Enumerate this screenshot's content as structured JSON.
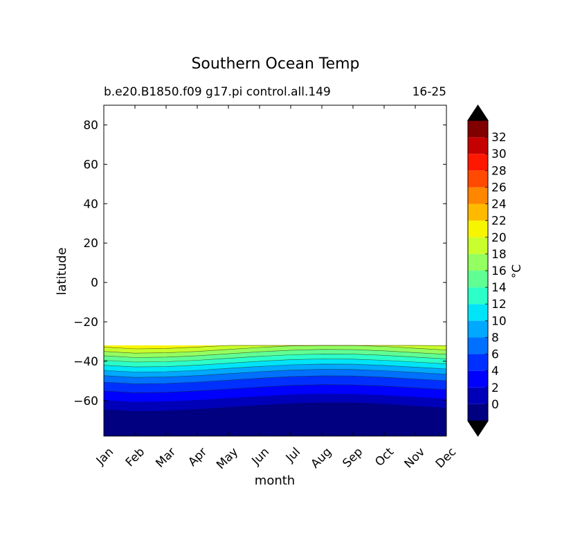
{
  "chart_data": {
    "type": "heatmap",
    "subtype": "filled-contour",
    "title": "Southern Ocean Temp",
    "subtitle_left": "b.e20.B1850.f09 g17.pi control.all.149",
    "subtitle_right": "16-25",
    "xlabel": "month",
    "ylabel": "latitude",
    "x_categories": [
      "Jan",
      "Feb",
      "Mar",
      "Apr",
      "May",
      "Jun",
      "Jul",
      "Aug",
      "Sep",
      "Oct",
      "Nov",
      "Dec"
    ],
    "ylim": [
      -78,
      90
    ],
    "y_ticks": [
      80,
      60,
      40,
      20,
      0,
      -20,
      -40,
      -60
    ],
    "y_tick_labels": [
      "80",
      "60",
      "40",
      "20",
      "0",
      "−20",
      "−40",
      "−60"
    ],
    "data_lat_range": [
      -78,
      -32
    ],
    "colorbar": {
      "label": "°C",
      "levels": [
        -2,
        0,
        2,
        4,
        6,
        8,
        10,
        12,
        14,
        16,
        18,
        20,
        22,
        24,
        26,
        28,
        30,
        32,
        34
      ],
      "tick_labels": [
        "0",
        "2",
        "4",
        "6",
        "8",
        "10",
        "12",
        "14",
        "16",
        "18",
        "20",
        "22",
        "24",
        "26",
        "28",
        "30",
        "32"
      ],
      "colors": [
        "#000080",
        "#0000b8",
        "#0000ff",
        "#0030ff",
        "#0070ff",
        "#00a8ff",
        "#00e4f8",
        "#2cffc8",
        "#60ff94",
        "#94ff60",
        "#c8ff2c",
        "#f8f500",
        "#ffba00",
        "#ff8600",
        "#ff4a00",
        "#ff1800",
        "#c40000",
        "#800000"
      ],
      "extend_colors": [
        "#000000",
        "#000000"
      ]
    },
    "isotherms": [
      {
        "level": 0,
        "lats": [
          -64.4,
          -65.3,
          -65.0,
          -64.2,
          -63.2,
          -62.2,
          -61.3,
          -60.8,
          -60.9,
          -61.6,
          -62.6,
          -63.6
        ]
      },
      {
        "level": 2,
        "lats": [
          -59.6,
          -60.5,
          -60.3,
          -59.6,
          -58.6,
          -57.6,
          -56.8,
          -56.4,
          -56.5,
          -57.1,
          -58.0,
          -58.9
        ]
      },
      {
        "level": 4,
        "lats": [
          -55.1,
          -56.0,
          -55.8,
          -55.1,
          -54.1,
          -53.1,
          -52.3,
          -51.9,
          -52.0,
          -52.6,
          -53.5,
          -54.4
        ]
      },
      {
        "level": 6,
        "lats": [
          -50.6,
          -51.5,
          -51.3,
          -50.6,
          -49.6,
          -48.6,
          -47.8,
          -47.4,
          -47.5,
          -48.1,
          -49.0,
          -49.9
        ]
      },
      {
        "level": 8,
        "lats": [
          -47.3,
          -48.2,
          -48.0,
          -47.3,
          -46.3,
          -45.3,
          -44.5,
          -44.1,
          -44.2,
          -44.8,
          -45.7,
          -46.6
        ]
      },
      {
        "level": 10,
        "lats": [
          -44.6,
          -45.5,
          -45.3,
          -44.6,
          -43.6,
          -42.6,
          -41.8,
          -41.4,
          -41.5,
          -42.1,
          -43.0,
          -43.9
        ]
      },
      {
        "level": 12,
        "lats": [
          -42.0,
          -42.9,
          -42.7,
          -42.0,
          -41.0,
          -40.0,
          -39.2,
          -38.8,
          -38.9,
          -39.5,
          -40.4,
          -41.3
        ]
      },
      {
        "level": 14,
        "lats": [
          -39.5,
          -40.4,
          -40.2,
          -39.5,
          -38.5,
          -37.5,
          -36.7,
          -36.3,
          -36.4,
          -37.0,
          -37.9,
          -38.8
        ]
      },
      {
        "level": 16,
        "lats": [
          -37.2,
          -38.1,
          -37.9,
          -37.2,
          -36.2,
          -35.2,
          -34.4,
          -34.0,
          -34.1,
          -34.7,
          -35.6,
          -36.5
        ]
      },
      {
        "level": 18,
        "lats": [
          -35.0,
          -35.9,
          -35.7,
          -35.0,
          -34.0,
          -33.0,
          -32.2,
          -31.8,
          -31.9,
          -32.5,
          -33.4,
          -34.3
        ]
      },
      {
        "level": 20,
        "lats": [
          -32.8,
          -33.7,
          -33.5,
          -32.8,
          -31.8,
          -30.8,
          -30.0,
          -29.6,
          -29.7,
          -30.3,
          -31.2,
          -32.1
        ]
      }
    ]
  }
}
